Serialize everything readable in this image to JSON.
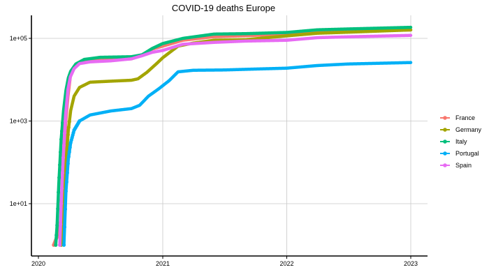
{
  "chart_data": {
    "type": "line",
    "title": "COVID-19 deaths Europe",
    "xlabel": "",
    "ylabel": "",
    "y_scale": "log",
    "xlim": [
      "2020-01-01",
      "2023-01-01"
    ],
    "ylim": [
      0.5,
      300000
    ],
    "x_ticks": [
      {
        "value": "2020-01-01",
        "label": "2020"
      },
      {
        "value": "2021-01-01",
        "label": "2021"
      },
      {
        "value": "2022-01-01",
        "label": "2022"
      },
      {
        "value": "2023-01-01",
        "label": "2023"
      }
    ],
    "y_ticks": [
      {
        "value": 10,
        "label": "1e+01"
      },
      {
        "value": 1000,
        "label": "1e+03"
      },
      {
        "value": 100000,
        "label": "1e+05"
      }
    ],
    "grid": true,
    "legend_position": "right",
    "series": [
      {
        "name": "France",
        "color": "#F8766D",
        "points": [
          [
            "2020-02-15",
            1
          ],
          [
            "2020-03-01",
            2
          ],
          [
            "2020-03-07",
            4
          ],
          [
            "2020-03-14",
            80
          ],
          [
            "2020-03-21",
            900
          ],
          [
            "2020-03-28",
            4000
          ],
          [
            "2020-04-04",
            12000
          ],
          [
            "2020-04-15",
            19000
          ],
          [
            "2020-05-01",
            25000
          ],
          [
            "2020-06-01",
            29000
          ],
          [
            "2020-08-01",
            30000
          ],
          [
            "2020-10-01",
            32000
          ],
          [
            "2020-11-01",
            40000
          ],
          [
            "2020-12-01",
            55000
          ],
          [
            "2021-01-01",
            65000
          ],
          [
            "2021-03-01",
            90000
          ],
          [
            "2021-06-01",
            110000
          ],
          [
            "2021-09-01",
            116000
          ],
          [
            "2022-01-01",
            127000
          ],
          [
            "2022-04-01",
            145000
          ],
          [
            "2022-07-01",
            150000
          ],
          [
            "2023-01-01",
            160000
          ]
        ]
      },
      {
        "name": "Germany",
        "color": "#A3A500",
        "points": [
          [
            "2020-03-08",
            1
          ],
          [
            "2020-03-15",
            10
          ],
          [
            "2020-03-22",
            100
          ],
          [
            "2020-03-29",
            600
          ],
          [
            "2020-04-05",
            1800
          ],
          [
            "2020-04-15",
            4000
          ],
          [
            "2020-05-01",
            6500
          ],
          [
            "2020-06-01",
            8700
          ],
          [
            "2020-08-01",
            9200
          ],
          [
            "2020-10-01",
            9700
          ],
          [
            "2020-10-20",
            10500
          ],
          [
            "2020-11-15",
            15000
          ],
          [
            "2020-12-15",
            25000
          ],
          [
            "2021-01-01",
            34000
          ],
          [
            "2021-02-15",
            65000
          ],
          [
            "2021-04-01",
            77000
          ],
          [
            "2021-06-01",
            90000
          ],
          [
            "2021-09-01",
            93000
          ],
          [
            "2022-01-01",
            115000
          ],
          [
            "2022-04-01",
            133000
          ],
          [
            "2022-07-01",
            141000
          ],
          [
            "2023-01-01",
            160000
          ]
        ]
      },
      {
        "name": "Italy",
        "color": "#00BF7D",
        "points": [
          [
            "2020-02-21",
            1
          ],
          [
            "2020-02-25",
            3
          ],
          [
            "2020-03-01",
            30
          ],
          [
            "2020-03-08",
            360
          ],
          [
            "2020-03-15",
            1800
          ],
          [
            "2020-03-22",
            5500
          ],
          [
            "2020-03-29",
            11000
          ],
          [
            "2020-04-05",
            16000
          ],
          [
            "2020-04-20",
            24000
          ],
          [
            "2020-05-15",
            31000
          ],
          [
            "2020-07-01",
            34800
          ],
          [
            "2020-10-01",
            36000
          ],
          [
            "2020-11-01",
            40000
          ],
          [
            "2020-12-01",
            57000
          ],
          [
            "2021-01-01",
            75000
          ],
          [
            "2021-03-01",
            100000
          ],
          [
            "2021-06-01",
            127000
          ],
          [
            "2021-09-01",
            130000
          ],
          [
            "2022-01-01",
            139000
          ],
          [
            "2022-04-01",
            161000
          ],
          [
            "2022-07-01",
            169000
          ],
          [
            "2023-01-01",
            185000
          ]
        ]
      },
      {
        "name": "Portugal",
        "color": "#00B0F6",
        "points": [
          [
            "2020-03-16",
            1
          ],
          [
            "2020-03-22",
            20
          ],
          [
            "2020-03-29",
            120
          ],
          [
            "2020-04-05",
            300
          ],
          [
            "2020-04-15",
            600
          ],
          [
            "2020-05-01",
            1000
          ],
          [
            "2020-06-01",
            1400
          ],
          [
            "2020-08-01",
            1750
          ],
          [
            "2020-10-01",
            2000
          ],
          [
            "2020-10-25",
            2400
          ],
          [
            "2020-11-20",
            4000
          ],
          [
            "2020-12-20",
            6000
          ],
          [
            "2021-01-20",
            9500
          ],
          [
            "2021-02-15",
            15500
          ],
          [
            "2021-04-01",
            16900
          ],
          [
            "2021-07-01",
            17200
          ],
          [
            "2021-10-01",
            18100
          ],
          [
            "2022-01-01",
            19000
          ],
          [
            "2022-04-01",
            22000
          ],
          [
            "2022-07-01",
            24000
          ],
          [
            "2023-01-01",
            26000
          ]
        ]
      },
      {
        "name": "Spain",
        "color": "#E76BF3",
        "points": [
          [
            "2020-03-04",
            1
          ],
          [
            "2020-03-08",
            10
          ],
          [
            "2020-03-14",
            130
          ],
          [
            "2020-03-21",
            1400
          ],
          [
            "2020-03-28",
            5800
          ],
          [
            "2020-04-04",
            11700
          ],
          [
            "2020-04-15",
            18500
          ],
          [
            "2020-05-01",
            24500
          ],
          [
            "2020-06-01",
            27000
          ],
          [
            "2020-08-01",
            28600
          ],
          [
            "2020-10-01",
            32000
          ],
          [
            "2020-11-01",
            38000
          ],
          [
            "2020-12-01",
            46000
          ],
          [
            "2021-01-01",
            51000
          ],
          [
            "2021-03-01",
            72000
          ],
          [
            "2021-06-01",
            80000
          ],
          [
            "2021-09-01",
            86000
          ],
          [
            "2022-01-01",
            90000
          ],
          [
            "2022-04-01",
            104000
          ],
          [
            "2022-07-01",
            109000
          ],
          [
            "2023-01-01",
            118000
          ]
        ]
      }
    ]
  }
}
